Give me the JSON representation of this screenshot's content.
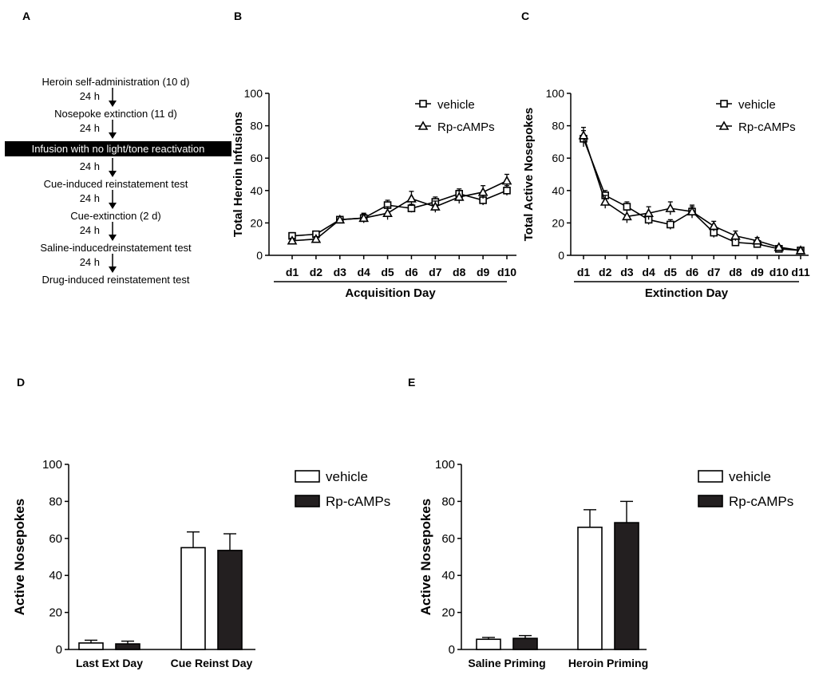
{
  "panel_letters": {
    "a": "A",
    "b": "B",
    "c": "C",
    "d": "D",
    "e": "E"
  },
  "flow": {
    "steps": [
      "Heroin self-administration (10 d)",
      "Nosepoke extinction (11 d)",
      "Infusion with no light/tone reactivation",
      "Cue-induced reinstatement test",
      "Cue-extinction (2 d)",
      "Saline-inducedreinstatement test",
      "Drug-induced reinstatement test"
    ],
    "intervals": [
      "24 h",
      "24 h",
      "24 h",
      "24 h",
      "24 h",
      "24 h"
    ]
  },
  "chart_data": [
    {
      "id": "B",
      "type": "line",
      "title": "",
      "xlabel": "Acquisition Day",
      "ylabel": "Total Heroin Infusions",
      "ylim": [
        0,
        100
      ],
      "yticks": [
        0,
        20,
        40,
        60,
        80,
        100
      ],
      "categories": [
        "d1",
        "d2",
        "d3",
        "d4",
        "d5",
        "d6",
        "d7",
        "d8",
        "d9",
        "d10"
      ],
      "legend_position": "top-right",
      "series": [
        {
          "name": "vehicle",
          "marker": "square",
          "values": [
            12,
            13,
            22,
            23,
            31,
            29,
            33,
            38,
            34,
            40
          ],
          "errors": [
            2,
            1.5,
            2,
            2.5,
            3,
            2.5,
            3,
            3,
            3,
            3
          ]
        },
        {
          "name": "Rp-cAMPs",
          "marker": "triangle",
          "values": [
            9,
            10,
            22,
            23,
            26,
            35,
            30,
            36,
            39,
            46
          ],
          "errors": [
            1.5,
            1.5,
            2,
            3,
            4,
            4.5,
            3.5,
            4,
            4,
            4
          ]
        }
      ]
    },
    {
      "id": "C",
      "type": "line",
      "title": "",
      "xlabel": "Extinction Day",
      "ylabel": "Total Active Nosepokes",
      "ylim": [
        0,
        100
      ],
      "yticks": [
        0,
        20,
        40,
        60,
        80,
        100
      ],
      "categories": [
        "d1",
        "d2",
        "d3",
        "d4",
        "d5",
        "d6",
        "d7",
        "d8",
        "d9",
        "d10",
        "d11"
      ],
      "legend_position": "top-right",
      "series": [
        {
          "name": "vehicle",
          "marker": "square",
          "values": [
            72,
            37,
            30,
            22,
            19,
            27,
            14,
            8,
            7,
            4,
            3
          ],
          "errors": [
            5,
            3,
            3,
            3,
            3,
            3,
            3,
            2,
            2,
            1,
            1
          ]
        },
        {
          "name": "Rp-cAMPs",
          "marker": "triangle",
          "values": [
            74,
            33,
            24,
            26,
            29,
            27,
            18,
            12,
            9,
            5,
            3
          ],
          "errors": [
            5,
            4,
            4,
            4,
            4,
            4,
            3,
            3,
            2,
            1,
            1
          ]
        }
      ]
    },
    {
      "id": "D",
      "type": "bar",
      "title": "",
      "xlabel": "",
      "ylabel": "Active Nosepokes",
      "ylim": [
        0,
        100
      ],
      "yticks": [
        0,
        20,
        40,
        60,
        80,
        100
      ],
      "categories": [
        "Last Ext Day",
        "Cue Reinst Day"
      ],
      "legend_position": "right",
      "series": [
        {
          "name": "vehicle",
          "color": "#ffffff",
          "values": [
            3.5,
            55
          ],
          "errors": [
            1.5,
            8.5
          ]
        },
        {
          "name": "Rp-cAMPs",
          "color": "#231f20",
          "values": [
            3,
            53.5
          ],
          "errors": [
            1.5,
            9
          ]
        }
      ]
    },
    {
      "id": "E",
      "type": "bar",
      "title": "",
      "xlabel": "",
      "ylabel": "Active Nosepokes",
      "ylim": [
        0,
        100
      ],
      "yticks": [
        0,
        20,
        40,
        60,
        80,
        100
      ],
      "categories": [
        "Saline Priming",
        "Heroin Priming"
      ],
      "legend_position": "right",
      "series": [
        {
          "name": "vehicle",
          "color": "#ffffff",
          "values": [
            5.5,
            66
          ],
          "errors": [
            1,
            9.5
          ]
        },
        {
          "name": "Rp-cAMPs",
          "color": "#231f20",
          "values": [
            6,
            68.5
          ],
          "errors": [
            1.5,
            11.5
          ]
        }
      ]
    }
  ]
}
